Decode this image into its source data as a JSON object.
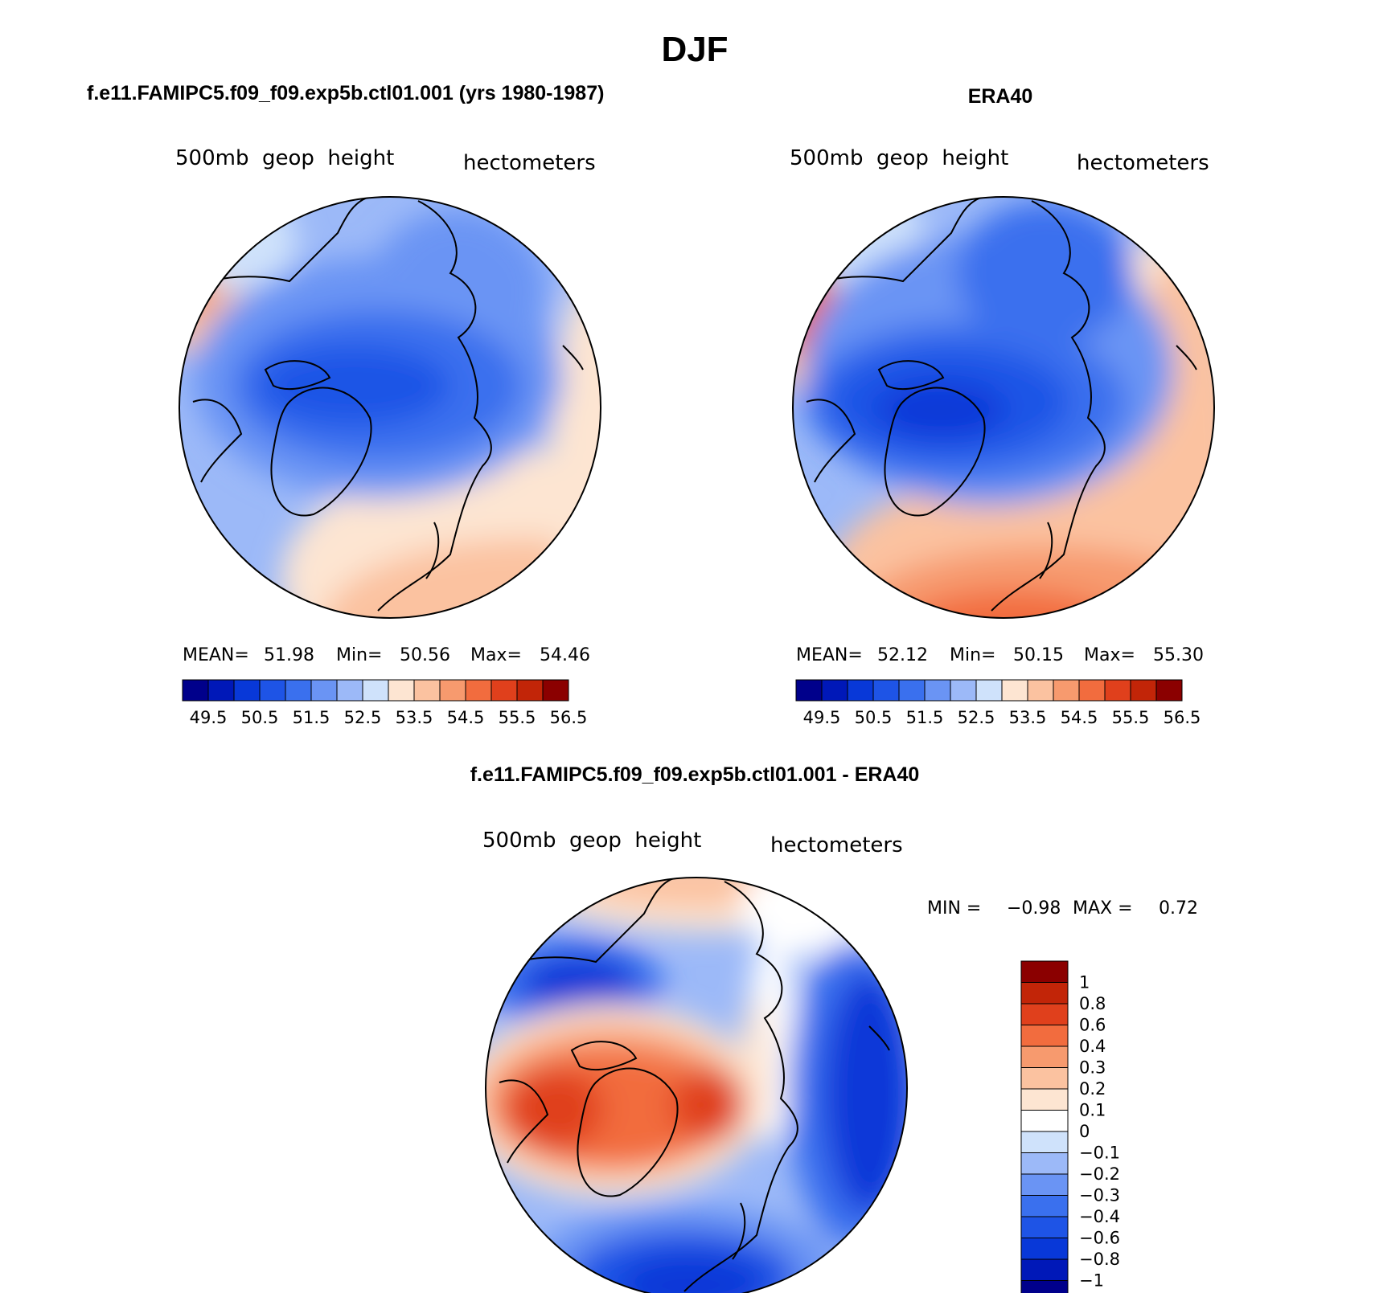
{
  "title": "DJF",
  "panels": {
    "model": {
      "heading": "f.e11.FAMIPC5.f09_f09.exp5b.ctl01.001 (yrs 1980-1987)",
      "variable": "500mb  geop  height",
      "units": "hectometers",
      "stats": {
        "mean_label": "MEAN=",
        "mean": "51.98",
        "min_label": "Min=",
        "min": "50.56",
        "max_label": "Max=",
        "max": "54.46"
      }
    },
    "obs": {
      "heading": "ERA40",
      "variable": "500mb  geop  height",
      "units": "hectometers",
      "stats": {
        "mean_label": "MEAN=",
        "mean": "52.12",
        "min_label": "Min=",
        "min": "50.15",
        "max_label": "Max=",
        "max": "55.30"
      }
    },
    "diff": {
      "heading": "f.e11.FAMIPC5.f09_f09.exp5b.ctl01.001 - ERA40",
      "variable": "500mb  geop  height",
      "units": "hectometers",
      "stats": {
        "min_label": "MIN =",
        "min": "−0.98",
        "max_label": "MAX =",
        "max": "0.72"
      }
    }
  },
  "colorbar_abs": {
    "labels": [
      "49.5",
      "50.5",
      "51.5",
      "52.5",
      "53.5",
      "54.5",
      "55.5",
      "56.5"
    ],
    "colors": [
      "#00008b",
      "#0018b8",
      "#0838d8",
      "#1e54e6",
      "#3a70ee",
      "#6a94f4",
      "#9cb9f8",
      "#cfe2fb",
      "#fde5d2",
      "#fbc2a0",
      "#f79a6e",
      "#f26c3e",
      "#e0401c",
      "#c22508",
      "#8b0000"
    ]
  },
  "colorbar_diff": {
    "labels": [
      "1",
      "0.8",
      "0.6",
      "0.4",
      "0.3",
      "0.2",
      "0.1",
      "0",
      "−0.1",
      "−0.2",
      "−0.3",
      "−0.4",
      "−0.6",
      "−0.8",
      "−1"
    ],
    "colors": [
      "#8b0000",
      "#c22508",
      "#e0401c",
      "#f26c3e",
      "#f79a6e",
      "#fbc2a0",
      "#fde5d2",
      "#ffffff",
      "#cfe2fb",
      "#9cb9f8",
      "#6a94f4",
      "#3a70ee",
      "#1e54e6",
      "#0838d8",
      "#0018b8",
      "#00008b"
    ]
  }
}
